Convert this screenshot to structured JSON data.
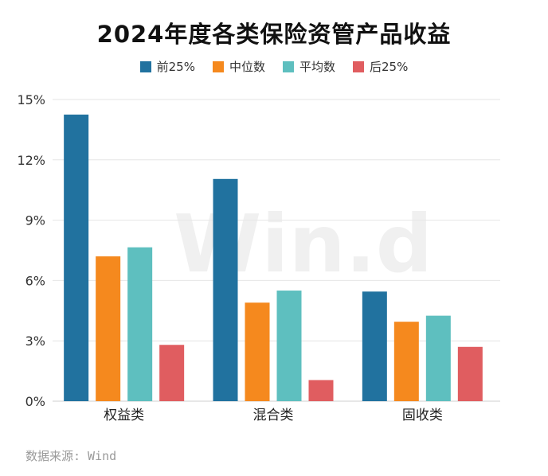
{
  "title": "2024年度各类保险资管产品收益",
  "source": "数据来源: Wind",
  "watermark": "Win.d",
  "chart_data": {
    "type": "bar",
    "categories": [
      "权益类",
      "混合类",
      "固收类"
    ],
    "series": [
      {
        "name": "前25%",
        "color": "#21729f",
        "values": [
          14.25,
          11.05,
          5.45
        ]
      },
      {
        "name": "中位数",
        "color": "#f5891e",
        "values": [
          7.2,
          4.9,
          3.95
        ]
      },
      {
        "name": "平均数",
        "color": "#5ebfbf",
        "values": [
          7.65,
          5.5,
          4.25
        ]
      },
      {
        "name": "后25%",
        "color": "#e05d60",
        "values": [
          2.8,
          1.05,
          2.7
        ]
      }
    ],
    "ylim": [
      0,
      15
    ],
    "yticks": [
      "0%",
      "3%",
      "6%",
      "9%",
      "12%",
      "15%"
    ],
    "ytick_values": [
      0,
      3,
      6,
      9,
      12,
      15
    ],
    "grid": true,
    "legend": "top-center"
  }
}
